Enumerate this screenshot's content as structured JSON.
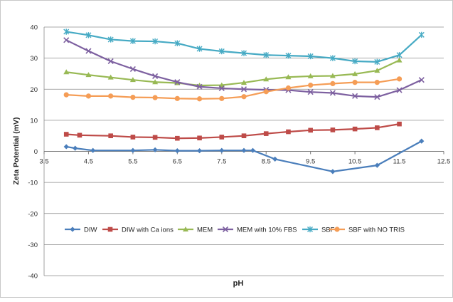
{
  "chart_data": {
    "type": "line",
    "title": "",
    "xlabel": "pH",
    "ylabel": "Zeta Potential (mV)",
    "xlim": [
      3.5,
      12.5
    ],
    "ylim": [
      -40,
      40
    ],
    "x_ticks": [
      "3.5",
      "4.5",
      "5.5",
      "6.5",
      "7.5",
      "8.5",
      "9.5",
      "10.5",
      "11.5",
      "12.5"
    ],
    "y_ticks": [
      "40",
      "30",
      "20",
      "10",
      "0",
      "-10",
      "-20",
      "-30",
      "-40"
    ],
    "grid": "horizontal",
    "legend_position": "bottom",
    "series": [
      {
        "name": "DIW",
        "color": "#4a7ebb",
        "marker": "diamond",
        "points": [
          [
            4.0,
            1.5
          ],
          [
            4.2,
            1.0
          ],
          [
            4.6,
            0.3
          ],
          [
            5.5,
            0.3
          ],
          [
            6.0,
            0.5
          ],
          [
            6.5,
            0.2
          ],
          [
            7.0,
            0.2
          ],
          [
            7.5,
            0.3
          ],
          [
            8.0,
            0.3
          ],
          [
            8.2,
            0.3
          ],
          [
            8.7,
            -2.5
          ],
          [
            10.0,
            -6.5
          ],
          [
            11.0,
            -4.5
          ],
          [
            12.0,
            3.3
          ]
        ]
      },
      {
        "name": "DIW with Ca ions",
        "color": "#be4b48",
        "marker": "square",
        "points": [
          [
            4.0,
            5.5
          ],
          [
            4.3,
            5.2
          ],
          [
            5.0,
            5.0
          ],
          [
            5.5,
            4.6
          ],
          [
            6.0,
            4.5
          ],
          [
            6.5,
            4.2
          ],
          [
            7.0,
            4.3
          ],
          [
            7.5,
            4.6
          ],
          [
            8.0,
            5.0
          ],
          [
            8.5,
            5.7
          ],
          [
            9.0,
            6.3
          ],
          [
            9.5,
            6.8
          ],
          [
            10.0,
            6.9
          ],
          [
            10.5,
            7.2
          ],
          [
            11.0,
            7.6
          ],
          [
            11.5,
            8.8
          ]
        ]
      },
      {
        "name": "MEM",
        "color": "#98b954",
        "marker": "triangle",
        "points": [
          [
            4.0,
            25.5
          ],
          [
            4.5,
            24.6
          ],
          [
            5.0,
            23.8
          ],
          [
            5.5,
            23.0
          ],
          [
            6.0,
            22.3
          ],
          [
            6.5,
            22.0
          ],
          [
            7.0,
            21.2
          ],
          [
            7.5,
            21.3
          ],
          [
            8.0,
            22.1
          ],
          [
            8.5,
            23.2
          ],
          [
            9.0,
            23.9
          ],
          [
            9.5,
            24.2
          ],
          [
            10.0,
            24.3
          ],
          [
            10.5,
            24.9
          ],
          [
            11.0,
            26.0
          ],
          [
            11.5,
            29.3
          ]
        ]
      },
      {
        "name": "MEM with 10% FBS",
        "color": "#7d60a0",
        "marker": "x",
        "points": [
          [
            4.0,
            35.8
          ],
          [
            4.5,
            32.3
          ],
          [
            5.0,
            29.0
          ],
          [
            5.5,
            26.5
          ],
          [
            6.0,
            24.2
          ],
          [
            6.5,
            22.3
          ],
          [
            7.0,
            20.8
          ],
          [
            7.5,
            20.3
          ],
          [
            8.0,
            20.0
          ],
          [
            8.5,
            19.8
          ],
          [
            9.0,
            19.7
          ],
          [
            9.5,
            19.1
          ],
          [
            10.0,
            18.8
          ],
          [
            10.5,
            17.8
          ],
          [
            11.0,
            17.5
          ],
          [
            11.5,
            19.7
          ],
          [
            12.0,
            23.0
          ]
        ]
      },
      {
        "name": "SBF",
        "color": "#46aac4",
        "marker": "star",
        "points": [
          [
            4.0,
            38.5
          ],
          [
            4.5,
            37.4
          ],
          [
            5.0,
            36.0
          ],
          [
            5.5,
            35.5
          ],
          [
            6.0,
            35.4
          ],
          [
            6.5,
            34.8
          ],
          [
            7.0,
            33.0
          ],
          [
            7.5,
            32.2
          ],
          [
            8.0,
            31.6
          ],
          [
            8.5,
            31.0
          ],
          [
            9.0,
            30.8
          ],
          [
            9.5,
            30.6
          ],
          [
            10.0,
            30.0
          ],
          [
            10.5,
            29.0
          ],
          [
            11.0,
            28.8
          ],
          [
            11.5,
            31.0
          ],
          [
            12.0,
            37.5
          ]
        ]
      },
      {
        "name": "SBF with  NO TRIS",
        "color": "#f59d56",
        "marker": "circle",
        "points": [
          [
            4.0,
            18.2
          ],
          [
            4.5,
            17.8
          ],
          [
            5.0,
            17.8
          ],
          [
            5.5,
            17.4
          ],
          [
            6.0,
            17.3
          ],
          [
            6.5,
            17.0
          ],
          [
            7.0,
            16.9
          ],
          [
            7.5,
            17.0
          ],
          [
            8.0,
            17.6
          ],
          [
            8.5,
            19.2
          ],
          [
            9.0,
            20.4
          ],
          [
            9.5,
            21.3
          ],
          [
            10.0,
            21.8
          ],
          [
            10.5,
            22.2
          ],
          [
            11.0,
            22.2
          ],
          [
            11.5,
            23.3
          ]
        ]
      }
    ]
  }
}
